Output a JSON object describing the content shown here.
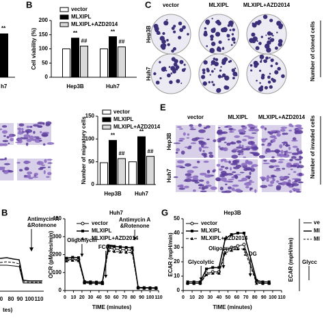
{
  "chart_data": [
    {
      "type": "bar",
      "y_label": "Cell viability (%)",
      "categories": [
        "Hep3B",
        "Huh7"
      ],
      "series": [
        {
          "name": "vector",
          "color": "#ffffff",
          "values": [
            100,
            100
          ]
        },
        {
          "name": "MLXIPL",
          "color": "#000000",
          "values": [
            138,
            143
          ],
          "annotations": [
            "**",
            "**"
          ]
        },
        {
          "name": "MLXIPL+AZD2014",
          "color": "#d9d9d9",
          "values": [
            110,
            107
          ],
          "annotations": [
            "##",
            "##"
          ]
        }
      ],
      "ylim": [
        0,
        200
      ],
      "yticks": [
        0,
        50,
        100,
        150,
        200
      ]
    },
    {
      "type": "bar",
      "y_label": "Number of migratory cells",
      "categories": [
        "Hep3B",
        "Huh7"
      ],
      "series": [
        {
          "name": "vector",
          "color": "#ffffff",
          "values": [
            48,
            50
          ]
        },
        {
          "name": "MLXIPL",
          "color": "#000000",
          "values": [
            97,
            105
          ],
          "annotations": [
            "**",
            "**"
          ]
        },
        {
          "name": "MLXIPL+AZD2014",
          "color": "#d9d9d9",
          "values": [
            57,
            62
          ],
          "annotations": [
            "##",
            "##"
          ]
        }
      ],
      "ylim": [
        0,
        150
      ],
      "yticks": [
        0,
        50,
        100,
        150
      ]
    },
    {
      "type": "line",
      "title": "Huh7",
      "y_label": "OCR (pMoles/min)",
      "x_label": "TIME (minutes)",
      "x": [
        2,
        9,
        16,
        23,
        30,
        37,
        44,
        51,
        58,
        65,
        72,
        79,
        86,
        93,
        100,
        107
      ],
      "series": [
        {
          "name": "vector",
          "color": "#000000",
          "values": [
            170,
            175,
            172,
            45,
            42,
            40,
            40,
            235,
            232,
            228,
            226,
            224,
            15,
            14,
            13,
            13
          ]
        },
        {
          "name": "MLXIPL",
          "color": "#000000",
          "values": [
            180,
            185,
            183,
            50,
            48,
            47,
            46,
            250,
            246,
            243,
            240,
            238,
            17,
            16,
            15,
            15
          ]
        },
        {
          "name": "MLXIPL+AZD2014",
          "color": "#000000",
          "values": [
            165,
            168,
            166,
            42,
            40,
            39,
            38,
            222,
            218,
            215,
            213,
            211,
            14,
            13,
            12,
            12
          ]
        }
      ],
      "xlim": [
        0,
        110
      ],
      "xticks": [
        0,
        10,
        20,
        30,
        40,
        50,
        60,
        70,
        80,
        90,
        100,
        110
      ],
      "ylim": [
        0,
        400
      ],
      "yticks": [
        0,
        100,
        200,
        300,
        400
      ],
      "annotations": [
        {
          "text": [
            "Oligomycin"
          ],
          "x": 20
        },
        {
          "text": [
            "FCCP"
          ],
          "x": 48
        },
        {
          "text": [
            "Antimycin A",
            "&Rotenone"
          ],
          "x": 82
        }
      ]
    },
    {
      "type": "line",
      "title": "Hep3B",
      "y_label": "ECAR (mpH/min)",
      "x_label": "TIME (minutes)",
      "x": [
        5,
        12,
        19,
        26,
        33,
        40,
        47,
        54,
        61,
        68,
        82,
        89,
        96
      ],
      "series": [
        {
          "name": "vector",
          "color": "#000000",
          "values": [
            5,
            5,
            5,
            12,
            13,
            13,
            28,
            30,
            31,
            32,
            6,
            5,
            5
          ]
        },
        {
          "name": "MLXIPL",
          "color": "#000000",
          "values": [
            6,
            6,
            6,
            15,
            16,
            16,
            36,
            39,
            40,
            40,
            7,
            6,
            6
          ]
        },
        {
          "name": "MLXIPL+AZD2014",
          "color": "#000000",
          "values": [
            5,
            5,
            5,
            11,
            12,
            12,
            26,
            28,
            29,
            29,
            5,
            5,
            5
          ]
        }
      ],
      "xlim": [
        0,
        110
      ],
      "xticks": [
        0,
        10,
        20,
        30,
        40,
        50,
        60,
        70,
        80,
        90,
        100,
        110
      ],
      "ylim": [
        0,
        50
      ],
      "yticks": [
        0,
        10,
        20,
        30,
        40,
        50
      ],
      "annotations": [
        {
          "text": [
            "Glycolytic"
          ],
          "x": 20
        },
        {
          "text": [
            "Oligomycin"
          ],
          "x": 45
        },
        {
          "text": [
            "2-DG"
          ],
          "x": 75
        }
      ]
    }
  ],
  "figure": {
    "panel_letters": [
      "B",
      "C",
      "E",
      "G",
      "B"
    ],
    "colony": {
      "columns": [
        "vector",
        "MLXIPL",
        "MLXIPL+AZD2014"
      ],
      "rows": [
        "Hep3B",
        "Huh7"
      ],
      "y_label": "Number of cloned cells"
    },
    "invasion": {
      "columns": [
        "vector",
        "MLXIPL",
        "MLXIPL+AZD2014"
      ],
      "rows": [
        "Hep3B",
        "Huh7"
      ],
      "y_label": "Number of invaded cells"
    },
    "fragments": {
      "top_left": [
        "**",
        "h7"
      ],
      "bottom_left": {
        "annotation": [
          "Antimycin A",
          "&Rotenone"
        ],
        "ticks": [
          0,
          80,
          90,
          100,
          110
        ],
        "x_label": "tes)"
      },
      "bottom_right": {
        "legend": [
          "ve",
          "MI",
          "MI"
        ],
        "y_label": "ECAR (mpH/min)",
        "annotation": "Glycc"
      }
    }
  }
}
